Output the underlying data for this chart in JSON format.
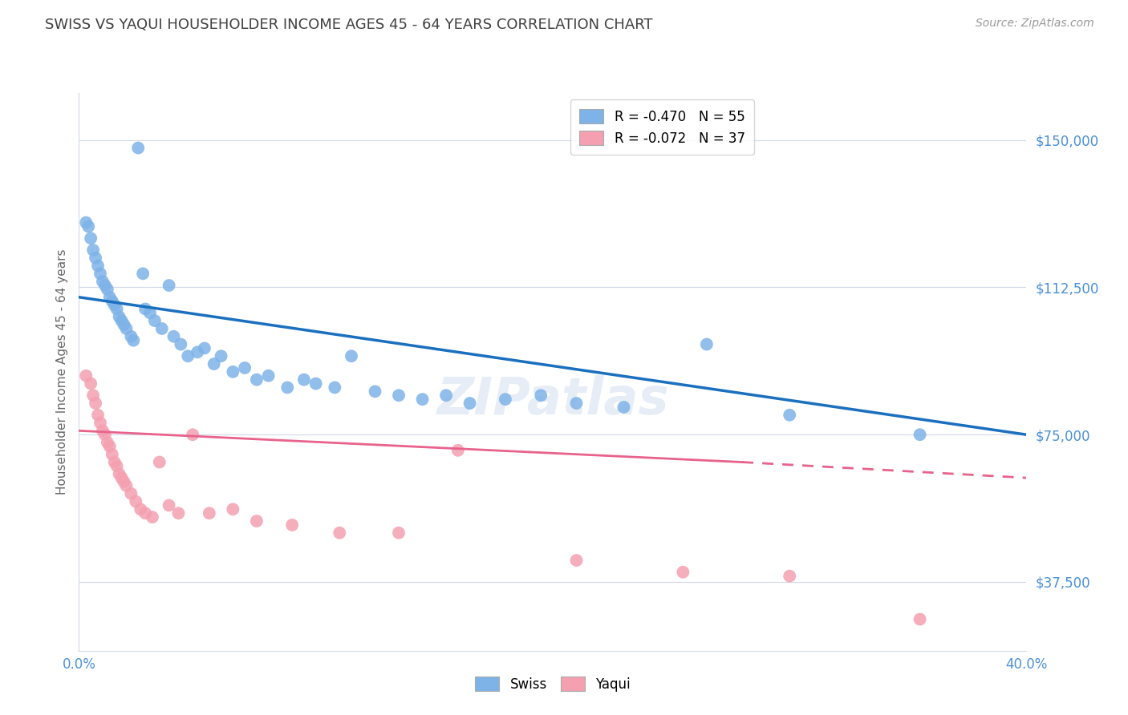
{
  "title": "SWISS VS YAQUI HOUSEHOLDER INCOME AGES 45 - 64 YEARS CORRELATION CHART",
  "source": "Source: ZipAtlas.com",
  "ylabel": "Householder Income Ages 45 - 64 years",
  "xlim": [
    0.0,
    0.4
  ],
  "ylim": [
    20000,
    162000
  ],
  "yticks": [
    37500,
    75000,
    112500,
    150000
  ],
  "ytick_labels": [
    "$37,500",
    "$75,000",
    "$112,500",
    "$150,000"
  ],
  "xticks": [
    0.0,
    0.05,
    0.1,
    0.15,
    0.2,
    0.25,
    0.3,
    0.35,
    0.4
  ],
  "xtick_labels": [
    "0.0%",
    "",
    "",
    "",
    "",
    "",
    "",
    "",
    "40.0%"
  ],
  "swiss_R": -0.47,
  "swiss_N": 55,
  "yaqui_R": -0.072,
  "yaqui_N": 37,
  "swiss_color": "#7eb3e8",
  "yaqui_color": "#f4a0b0",
  "trendline_swiss_color": "#1a6fbf",
  "trendline_yaqui_color": "#e8638c",
  "background_color": "#ffffff",
  "grid_color": "#d0d8e8",
  "axis_label_color": "#4a90d9",
  "title_color": "#404040",
  "swiss_x": [
    0.003,
    0.004,
    0.005,
    0.006,
    0.007,
    0.008,
    0.009,
    0.01,
    0.011,
    0.012,
    0.013,
    0.014,
    0.015,
    0.016,
    0.017,
    0.018,
    0.019,
    0.02,
    0.022,
    0.023,
    0.025,
    0.027,
    0.028,
    0.03,
    0.032,
    0.035,
    0.038,
    0.04,
    0.043,
    0.046,
    0.05,
    0.053,
    0.057,
    0.06,
    0.065,
    0.07,
    0.075,
    0.08,
    0.088,
    0.095,
    0.1,
    0.108,
    0.115,
    0.125,
    0.135,
    0.145,
    0.155,
    0.165,
    0.18,
    0.195,
    0.21,
    0.23,
    0.265,
    0.3,
    0.355
  ],
  "swiss_y": [
    129000,
    128000,
    125000,
    122000,
    120000,
    118000,
    116000,
    114000,
    113000,
    112000,
    110000,
    109000,
    108000,
    107000,
    105000,
    104000,
    103000,
    102000,
    100000,
    99000,
    148000,
    116000,
    107000,
    106000,
    104000,
    102000,
    113000,
    100000,
    98000,
    95000,
    96000,
    97000,
    93000,
    95000,
    91000,
    92000,
    89000,
    90000,
    87000,
    89000,
    88000,
    87000,
    95000,
    86000,
    85000,
    84000,
    85000,
    83000,
    84000,
    85000,
    83000,
    82000,
    98000,
    80000,
    75000
  ],
  "yaqui_x": [
    0.003,
    0.005,
    0.006,
    0.007,
    0.008,
    0.009,
    0.01,
    0.011,
    0.012,
    0.013,
    0.014,
    0.015,
    0.016,
    0.017,
    0.018,
    0.019,
    0.02,
    0.022,
    0.024,
    0.026,
    0.028,
    0.031,
    0.034,
    0.038,
    0.042,
    0.048,
    0.055,
    0.065,
    0.075,
    0.09,
    0.11,
    0.135,
    0.16,
    0.21,
    0.255,
    0.3,
    0.355
  ],
  "yaqui_y": [
    90000,
    88000,
    85000,
    83000,
    80000,
    78000,
    76000,
    75000,
    73000,
    72000,
    70000,
    68000,
    67000,
    65000,
    64000,
    63000,
    62000,
    60000,
    58000,
    56000,
    55000,
    54000,
    68000,
    57000,
    55000,
    75000,
    55000,
    56000,
    53000,
    52000,
    50000,
    50000,
    71000,
    43000,
    40000,
    39000,
    28000
  ]
}
